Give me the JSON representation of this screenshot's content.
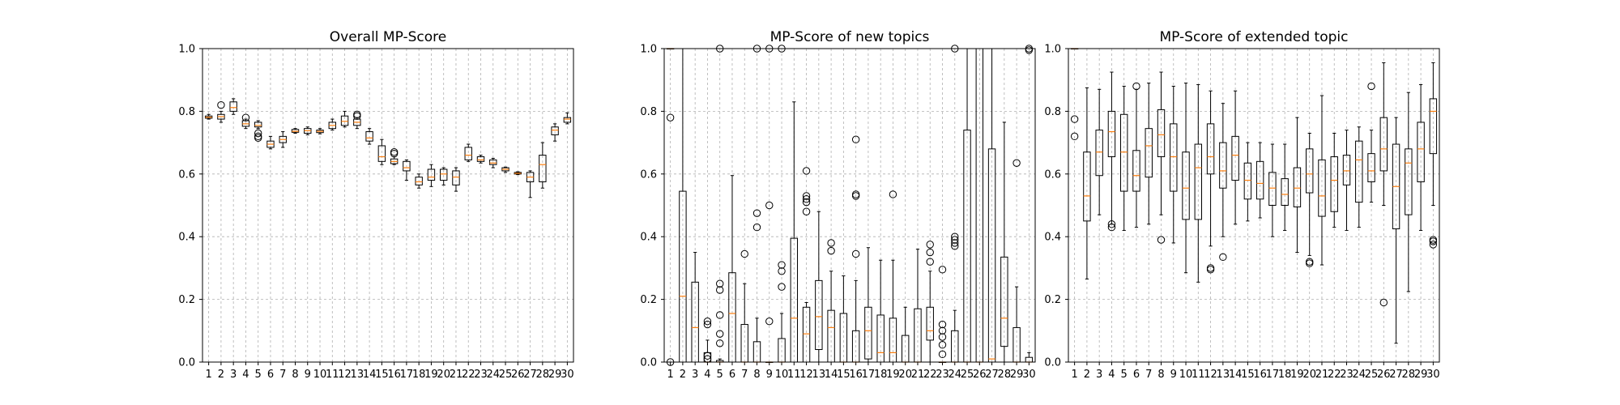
{
  "colors": {
    "median": "#ff7f0e",
    "box": "#000000",
    "grid": "#b0b0b0"
  },
  "chart_data": [
    {
      "type": "box",
      "title": "Overall MP-Score",
      "xlabel": "",
      "ylabel": "",
      "ylim": [
        0,
        1
      ],
      "yticks": [
        "0.0",
        "0.2",
        "0.4",
        "0.6",
        "0.8",
        "1.0"
      ],
      "grid": true,
      "categories": [
        "1",
        "2",
        "3",
        "4",
        "5",
        "6",
        "7",
        "8",
        "9",
        "10",
        "11",
        "12",
        "13",
        "14",
        "15",
        "16",
        "17",
        "18",
        "19",
        "20",
        "21",
        "22",
        "23",
        "24",
        "25",
        "26",
        "27",
        "28",
        "29",
        "30"
      ],
      "boxes": [
        {
          "whislo": 0.775,
          "q1": 0.778,
          "med": 0.781,
          "q3": 0.785,
          "whishi": 0.79,
          "fliers": []
        },
        {
          "whislo": 0.765,
          "q1": 0.775,
          "med": 0.783,
          "q3": 0.79,
          "whishi": 0.8,
          "fliers": [
            0.82
          ]
        },
        {
          "whislo": 0.79,
          "q1": 0.8,
          "med": 0.812,
          "q3": 0.83,
          "whishi": 0.84,
          "fliers": []
        },
        {
          "whislo": 0.745,
          "q1": 0.752,
          "med": 0.76,
          "q3": 0.77,
          "whishi": 0.775,
          "fliers": [
            0.78
          ]
        },
        {
          "whislo": 0.745,
          "q1": 0.75,
          "med": 0.755,
          "q3": 0.765,
          "whishi": 0.77,
          "fliers": [
            0.73,
            0.72,
            0.715
          ]
        },
        {
          "whislo": 0.68,
          "q1": 0.685,
          "med": 0.695,
          "q3": 0.705,
          "whishi": 0.72,
          "fliers": []
        },
        {
          "whislo": 0.685,
          "q1": 0.7,
          "med": 0.71,
          "q3": 0.72,
          "whishi": 0.735,
          "fliers": []
        },
        {
          "whislo": 0.73,
          "q1": 0.733,
          "med": 0.736,
          "q3": 0.742,
          "whishi": 0.745,
          "fliers": []
        },
        {
          "whislo": 0.725,
          "q1": 0.73,
          "med": 0.738,
          "q3": 0.745,
          "whishi": 0.75,
          "fliers": []
        },
        {
          "whislo": 0.728,
          "q1": 0.732,
          "med": 0.736,
          "q3": 0.74,
          "whishi": 0.745,
          "fliers": []
        },
        {
          "whislo": 0.74,
          "q1": 0.745,
          "med": 0.755,
          "q3": 0.765,
          "whishi": 0.775,
          "fliers": []
        },
        {
          "whislo": 0.75,
          "q1": 0.755,
          "med": 0.768,
          "q3": 0.785,
          "whishi": 0.8,
          "fliers": []
        },
        {
          "whislo": 0.745,
          "q1": 0.755,
          "med": 0.765,
          "q3": 0.775,
          "whishi": 0.78,
          "fliers": [
            0.79,
            0.785
          ]
        },
        {
          "whislo": 0.695,
          "q1": 0.705,
          "med": 0.715,
          "q3": 0.735,
          "whishi": 0.745,
          "fliers": []
        },
        {
          "whislo": 0.63,
          "q1": 0.64,
          "med": 0.655,
          "q3": 0.69,
          "whishi": 0.71,
          "fliers": []
        },
        {
          "whislo": 0.63,
          "q1": 0.633,
          "med": 0.64,
          "q3": 0.648,
          "whishi": 0.655,
          "fliers": [
            0.67,
            0.665
          ]
        },
        {
          "whislo": 0.58,
          "q1": 0.61,
          "med": 0.62,
          "q3": 0.64,
          "whishi": 0.645,
          "fliers": []
        },
        {
          "whislo": 0.555,
          "q1": 0.565,
          "med": 0.575,
          "q3": 0.59,
          "whishi": 0.6,
          "fliers": []
        },
        {
          "whislo": 0.56,
          "q1": 0.58,
          "med": 0.59,
          "q3": 0.615,
          "whishi": 0.63,
          "fliers": []
        },
        {
          "whislo": 0.565,
          "q1": 0.58,
          "med": 0.6,
          "q3": 0.615,
          "whishi": 0.62,
          "fliers": []
        },
        {
          "whislo": 0.545,
          "q1": 0.565,
          "med": 0.59,
          "q3": 0.61,
          "whishi": 0.62,
          "fliers": []
        },
        {
          "whislo": 0.64,
          "q1": 0.645,
          "med": 0.66,
          "q3": 0.685,
          "whishi": 0.695,
          "fliers": []
        },
        {
          "whislo": 0.635,
          "q1": 0.64,
          "med": 0.645,
          "q3": 0.655,
          "whishi": 0.66,
          "fliers": []
        },
        {
          "whislo": 0.62,
          "q1": 0.63,
          "med": 0.635,
          "q3": 0.645,
          "whishi": 0.65,
          "fliers": []
        },
        {
          "whislo": 0.605,
          "q1": 0.61,
          "med": 0.615,
          "q3": 0.62,
          "whishi": 0.622,
          "fliers": []
        },
        {
          "whislo": 0.598,
          "q1": 0.6,
          "med": 0.602,
          "q3": 0.605,
          "whishi": 0.607,
          "fliers": []
        },
        {
          "whislo": 0.525,
          "q1": 0.575,
          "med": 0.59,
          "q3": 0.605,
          "whishi": 0.61,
          "fliers": []
        },
        {
          "whislo": 0.555,
          "q1": 0.575,
          "med": 0.63,
          "q3": 0.66,
          "whishi": 0.7,
          "fliers": []
        },
        {
          "whislo": 0.705,
          "q1": 0.725,
          "med": 0.74,
          "q3": 0.75,
          "whishi": 0.76,
          "fliers": []
        },
        {
          "whislo": 0.76,
          "q1": 0.765,
          "med": 0.775,
          "q3": 0.78,
          "whishi": 0.795,
          "fliers": []
        }
      ]
    },
    {
      "type": "box",
      "title": "MP-Score of new topics",
      "xlabel": "",
      "ylabel": "",
      "ylim": [
        0,
        1
      ],
      "yticks": [
        "0.0",
        "0.2",
        "0.4",
        "0.6",
        "0.8",
        "1.0"
      ],
      "grid": true,
      "categories": [
        "1",
        "2",
        "3",
        "4",
        "5",
        "6",
        "7",
        "8",
        "9",
        "10",
        "11",
        "12",
        "13",
        "14",
        "15",
        "16",
        "17",
        "18",
        "19",
        "20",
        "21",
        "22",
        "23",
        "24",
        "25",
        "26",
        "27",
        "28",
        "29",
        "30"
      ],
      "boxes": [
        {
          "whislo": 1.0,
          "q1": 1.0,
          "med": 1.0,
          "q3": 1.0,
          "whishi": 1.0,
          "fliers": [
            0.78,
            0.0
          ]
        },
        {
          "whislo": 0.0,
          "q1": 0.0,
          "med": 0.21,
          "q3": 0.545,
          "whishi": 1.0,
          "fliers": []
        },
        {
          "whislo": 0.0,
          "q1": 0.0,
          "med": 0.11,
          "q3": 0.255,
          "whishi": 0.35,
          "fliers": []
        },
        {
          "whislo": 0.0,
          "q1": 0.0,
          "med": 0.0,
          "q3": 0.03,
          "whishi": 0.07,
          "fliers": [
            0.13,
            0.12,
            0.02,
            0.01
          ]
        },
        {
          "whislo": 0.0,
          "q1": 0.0,
          "med": 0.0,
          "q3": 0.005,
          "whishi": 0.01,
          "fliers": [
            1.0,
            0.25,
            0.23,
            0.15,
            0.09,
            0.06
          ]
        },
        {
          "whislo": 0.0,
          "q1": 0.0,
          "med": 0.155,
          "q3": 0.285,
          "whishi": 0.595,
          "fliers": []
        },
        {
          "whislo": 0.0,
          "q1": 0.0,
          "med": 0.0,
          "q3": 0.12,
          "whishi": 0.25,
          "fliers": [
            0.345
          ]
        },
        {
          "whislo": 0.0,
          "q1": 0.0,
          "med": 0.0,
          "q3": 0.065,
          "whishi": 0.14,
          "fliers": [
            1.0,
            0.475,
            0.43
          ]
        },
        {
          "whislo": 0.0,
          "q1": 0.0,
          "med": 0.0,
          "q3": 0.0,
          "whishi": 0.0,
          "fliers": [
            1.0,
            0.5,
            0.13
          ]
        },
        {
          "whislo": 0.0,
          "q1": 0.0,
          "med": 0.0,
          "q3": 0.075,
          "whishi": 0.155,
          "fliers": [
            1.0,
            0.31,
            0.29,
            0.24
          ]
        },
        {
          "whislo": 0.0,
          "q1": 0.0,
          "med": 0.14,
          "q3": 0.395,
          "whishi": 0.83,
          "fliers": []
        },
        {
          "whislo": 0.0,
          "q1": 0.0,
          "med": 0.09,
          "q3": 0.175,
          "whishi": 0.19,
          "fliers": [
            0.61,
            0.53,
            0.52,
            0.51,
            0.48
          ]
        },
        {
          "whislo": 0.0,
          "q1": 0.04,
          "med": 0.145,
          "q3": 0.26,
          "whishi": 0.48,
          "fliers": []
        },
        {
          "whislo": 0.0,
          "q1": 0.0,
          "med": 0.11,
          "q3": 0.165,
          "whishi": 0.29,
          "fliers": [
            0.38,
            0.355
          ]
        },
        {
          "whislo": 0.0,
          "q1": 0.0,
          "med": 0.0,
          "q3": 0.155,
          "whishi": 0.275,
          "fliers": []
        },
        {
          "whislo": 0.0,
          "q1": 0.0,
          "med": 0.0,
          "q3": 0.1,
          "whishi": 0.26,
          "fliers": [
            0.71,
            0.535,
            0.53,
            0.345
          ]
        },
        {
          "whislo": 0.0,
          "q1": 0.01,
          "med": 0.1,
          "q3": 0.175,
          "whishi": 0.365,
          "fliers": []
        },
        {
          "whislo": 0.0,
          "q1": 0.0,
          "med": 0.03,
          "q3": 0.15,
          "whishi": 0.325,
          "fliers": []
        },
        {
          "whislo": 0.0,
          "q1": 0.0,
          "med": 0.03,
          "q3": 0.14,
          "whishi": 0.325,
          "fliers": [
            0.535
          ]
        },
        {
          "whislo": 0.0,
          "q1": 0.0,
          "med": 0.0,
          "q3": 0.085,
          "whishi": 0.175,
          "fliers": []
        },
        {
          "whislo": 0.0,
          "q1": 0.0,
          "med": 0.0,
          "q3": 0.17,
          "whishi": 0.36,
          "fliers": []
        },
        {
          "whislo": 0.0,
          "q1": 0.07,
          "med": 0.1,
          "q3": 0.175,
          "whishi": 0.29,
          "fliers": [
            0.375,
            0.35,
            0.32
          ]
        },
        {
          "whislo": 0.0,
          "q1": 0.0,
          "med": 0.0,
          "q3": 0.0,
          "whishi": 0.0,
          "fliers": [
            0.295,
            0.12,
            0.1,
            0.08,
            0.055,
            0.025
          ]
        },
        {
          "whislo": 0.0,
          "q1": 0.0,
          "med": 0.0,
          "q3": 0.1,
          "whishi": 0.165,
          "fliers": [
            1.0,
            0.4,
            0.39,
            0.38,
            0.37
          ]
        },
        {
          "whislo": 0.0,
          "q1": 0.0,
          "med": 0.0,
          "q3": 0.74,
          "whishi": 1.0,
          "fliers": []
        },
        {
          "whislo": 0.0,
          "q1": 0.0,
          "med": 0.0,
          "q3": 1.0,
          "whishi": 1.0,
          "fliers": []
        },
        {
          "whislo": 0.0,
          "q1": 0.0,
          "med": 0.01,
          "q3": 0.68,
          "whishi": 1.0,
          "fliers": []
        },
        {
          "whislo": 0.0,
          "q1": 0.05,
          "med": 0.14,
          "q3": 0.335,
          "whishi": 0.765,
          "fliers": []
        },
        {
          "whislo": 0.0,
          "q1": 0.0,
          "med": 0.0,
          "q3": 0.11,
          "whishi": 0.24,
          "fliers": [
            0.635
          ]
        },
        {
          "whislo": 0.0,
          "q1": 0.0,
          "med": 0.0,
          "q3": 0.015,
          "whishi": 0.03,
          "fliers": [
            1.0,
            0.995
          ]
        }
      ]
    },
    {
      "type": "box",
      "title": "MP-Score of extended topic",
      "xlabel": "",
      "ylabel": "",
      "ylim": [
        0,
        1
      ],
      "yticks": [
        "0.0",
        "0.2",
        "0.4",
        "0.6",
        "0.8",
        "1.0"
      ],
      "grid": true,
      "categories": [
        "1",
        "2",
        "3",
        "4",
        "5",
        "6",
        "7",
        "8",
        "9",
        "10",
        "11",
        "12",
        "13",
        "14",
        "15",
        "16",
        "17",
        "18",
        "19",
        "20",
        "21",
        "22",
        "23",
        "24",
        "25",
        "26",
        "27",
        "28",
        "29",
        "30"
      ],
      "boxes": [
        {
          "whislo": 1.0,
          "q1": 1.0,
          "med": 1.0,
          "q3": 1.0,
          "whishi": 1.0,
          "fliers": [
            0.775,
            0.72
          ]
        },
        {
          "whislo": 0.265,
          "q1": 0.45,
          "med": 0.53,
          "q3": 0.67,
          "whishi": 0.875,
          "fliers": []
        },
        {
          "whislo": 0.47,
          "q1": 0.595,
          "med": 0.67,
          "q3": 0.74,
          "whishi": 0.87,
          "fliers": []
        },
        {
          "whislo": 0.44,
          "q1": 0.655,
          "med": 0.735,
          "q3": 0.8,
          "whishi": 0.925,
          "fliers": [
            0.44,
            0.43
          ]
        },
        {
          "whislo": 0.42,
          "q1": 0.545,
          "med": 0.67,
          "q3": 0.79,
          "whishi": 0.88,
          "fliers": []
        },
        {
          "whislo": 0.43,
          "q1": 0.545,
          "med": 0.595,
          "q3": 0.675,
          "whishi": 0.87,
          "fliers": [
            0.88
          ]
        },
        {
          "whislo": 0.44,
          "q1": 0.59,
          "med": 0.69,
          "q3": 0.745,
          "whishi": 0.89,
          "fliers": []
        },
        {
          "whislo": 0.47,
          "q1": 0.655,
          "med": 0.725,
          "q3": 0.805,
          "whishi": 0.925,
          "fliers": [
            0.39
          ]
        },
        {
          "whislo": 0.38,
          "q1": 0.545,
          "med": 0.655,
          "q3": 0.76,
          "whishi": 0.88,
          "fliers": []
        },
        {
          "whislo": 0.285,
          "q1": 0.455,
          "med": 0.555,
          "q3": 0.67,
          "whishi": 0.89,
          "fliers": []
        },
        {
          "whislo": 0.255,
          "q1": 0.455,
          "med": 0.62,
          "q3": 0.695,
          "whishi": 0.885,
          "fliers": []
        },
        {
          "whislo": 0.37,
          "q1": 0.6,
          "med": 0.655,
          "q3": 0.76,
          "whishi": 0.865,
          "fliers": [
            0.3,
            0.295
          ]
        },
        {
          "whislo": 0.4,
          "q1": 0.555,
          "med": 0.61,
          "q3": 0.7,
          "whishi": 0.825,
          "fliers": [
            0.335
          ]
        },
        {
          "whislo": 0.44,
          "q1": 0.58,
          "med": 0.66,
          "q3": 0.72,
          "whishi": 0.865,
          "fliers": []
        },
        {
          "whislo": 0.45,
          "q1": 0.52,
          "med": 0.58,
          "q3": 0.635,
          "whishi": 0.7,
          "fliers": []
        },
        {
          "whislo": 0.46,
          "q1": 0.52,
          "med": 0.57,
          "q3": 0.64,
          "whishi": 0.7,
          "fliers": []
        },
        {
          "whislo": 0.4,
          "q1": 0.5,
          "med": 0.555,
          "q3": 0.605,
          "whishi": 0.695,
          "fliers": []
        },
        {
          "whislo": 0.42,
          "q1": 0.5,
          "med": 0.535,
          "q3": 0.585,
          "whishi": 0.695,
          "fliers": []
        },
        {
          "whislo": 0.35,
          "q1": 0.495,
          "med": 0.555,
          "q3": 0.62,
          "whishi": 0.78,
          "fliers": []
        },
        {
          "whislo": 0.34,
          "q1": 0.54,
          "med": 0.6,
          "q3": 0.68,
          "whishi": 0.73,
          "fliers": [
            0.32,
            0.315
          ]
        },
        {
          "whislo": 0.31,
          "q1": 0.465,
          "med": 0.53,
          "q3": 0.645,
          "whishi": 0.85,
          "fliers": []
        },
        {
          "whislo": 0.43,
          "q1": 0.48,
          "med": 0.58,
          "q3": 0.655,
          "whishi": 0.73,
          "fliers": []
        },
        {
          "whislo": 0.42,
          "q1": 0.565,
          "med": 0.61,
          "q3": 0.66,
          "whishi": 0.74,
          "fliers": []
        },
        {
          "whislo": 0.43,
          "q1": 0.51,
          "med": 0.645,
          "q3": 0.705,
          "whishi": 0.75,
          "fliers": []
        },
        {
          "whislo": 0.51,
          "q1": 0.575,
          "med": 0.61,
          "q3": 0.665,
          "whishi": 0.74,
          "fliers": [
            0.88
          ]
        },
        {
          "whislo": 0.5,
          "q1": 0.61,
          "med": 0.68,
          "q3": 0.78,
          "whishi": 0.955,
          "fliers": [
            0.19
          ]
        },
        {
          "whislo": 0.06,
          "q1": 0.425,
          "med": 0.56,
          "q3": 0.695,
          "whishi": 0.78,
          "fliers": []
        },
        {
          "whislo": 0.225,
          "q1": 0.47,
          "med": 0.635,
          "q3": 0.68,
          "whishi": 0.86,
          "fliers": []
        },
        {
          "whislo": 0.42,
          "q1": 0.575,
          "med": 0.68,
          "q3": 0.765,
          "whishi": 0.885,
          "fliers": []
        },
        {
          "whislo": 0.5,
          "q1": 0.665,
          "med": 0.8,
          "q3": 0.84,
          "whishi": 0.955,
          "fliers": [
            0.39,
            0.385,
            0.375
          ]
        }
      ]
    }
  ]
}
